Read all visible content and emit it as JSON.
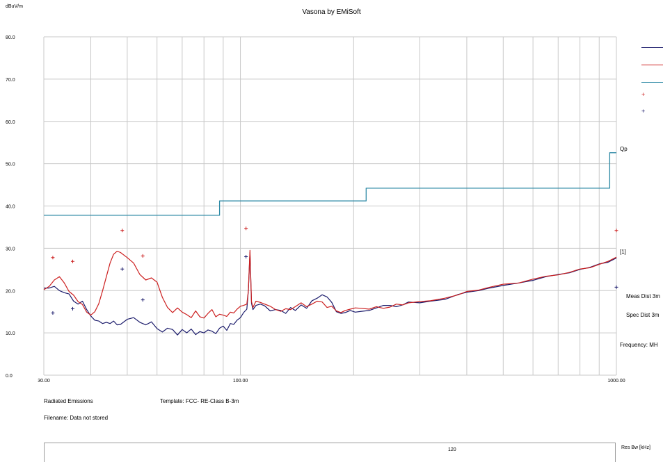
{
  "header": {
    "title": "Vasona by EMiSoft"
  },
  "footer": {
    "section": "Radiated Emissions",
    "template": "Template: FCC- RE-Class B-3m",
    "filename": "Filename: Data not stored",
    "res_bw_label": "Res Bw [kHz]",
    "res_bw_value": "120"
  },
  "side_info": {
    "meas_dist": "Meas Dist 3m",
    "spec_dist": "Spec Dist 3m",
    "frequency": "Frequency: MH",
    "limit_tag": "Qp",
    "trace_tag": "[1]"
  },
  "colors": {
    "trace_navy": "#1b1b6b",
    "trace_red": "#cc1f1f",
    "limit_teal": "#2e8aa6",
    "grid": "#c8c8c8"
  },
  "chart_data": {
    "type": "line",
    "title": "Vasona by EMiSoft",
    "ylabel": "dBuV/m",
    "xlabel": "",
    "xscale": "log",
    "xlim": [
      30,
      1000
    ],
    "ylim": [
      0,
      80
    ],
    "yticks": [
      "0.0",
      "10.0",
      "20.0",
      "30.0",
      "40.0",
      "50.0",
      "60.0",
      "70.0",
      "80.0"
    ],
    "xticks": [
      {
        "value": 30,
        "label": "30.00"
      },
      {
        "value": 100,
        "label": "100.00"
      },
      {
        "value": 1000,
        "label": "1000.00"
      }
    ],
    "grid": true,
    "legend_position": "right",
    "series": [
      {
        "color": "#2e8aa6",
        "style": "step",
        "points": [
          [
            30,
            37.8
          ],
          [
            88,
            37.8
          ],
          [
            88,
            41.2
          ],
          [
            216,
            41.2
          ],
          [
            216,
            44.2
          ],
          [
            960,
            44.2
          ],
          [
            960,
            52.6
          ],
          [
            1000,
            52.6
          ]
        ]
      },
      {
        "color": "#1b1b6b",
        "style": "line",
        "points": [
          [
            30,
            20.6
          ],
          [
            31,
            20.6
          ],
          [
            32,
            21.0
          ],
          [
            33,
            20.0
          ],
          [
            34,
            19.5
          ],
          [
            35,
            19.2
          ],
          [
            36,
            17.5
          ],
          [
            37,
            16.8
          ],
          [
            38,
            17.5
          ],
          [
            39,
            15.5
          ],
          [
            40,
            14.0
          ],
          [
            41,
            13.0
          ],
          [
            42,
            12.8
          ],
          [
            43,
            12.2
          ],
          [
            44,
            12.5
          ],
          [
            45,
            12.2
          ],
          [
            46,
            12.8
          ],
          [
            47,
            11.9
          ],
          [
            48,
            12.0
          ],
          [
            50,
            13.2
          ],
          [
            52,
            13.6
          ],
          [
            54,
            12.5
          ],
          [
            56,
            11.9
          ],
          [
            58,
            12.6
          ],
          [
            60,
            11.0
          ],
          [
            62,
            10.2
          ],
          [
            64,
            11.1
          ],
          [
            66,
            10.8
          ],
          [
            68,
            9.5
          ],
          [
            70,
            10.8
          ],
          [
            72,
            10.0
          ],
          [
            74,
            10.9
          ],
          [
            76,
            9.6
          ],
          [
            78,
            10.3
          ],
          [
            80,
            10.0
          ],
          [
            82,
            10.7
          ],
          [
            84,
            10.4
          ],
          [
            86,
            9.8
          ],
          [
            88,
            11.1
          ],
          [
            90,
            11.6
          ],
          [
            92,
            10.6
          ],
          [
            94,
            12.2
          ],
          [
            96,
            12.0
          ],
          [
            98,
            13.0
          ],
          [
            100,
            13.6
          ],
          [
            102,
            14.8
          ],
          [
            104,
            15.6
          ],
          [
            105,
            20.0
          ],
          [
            106,
            29.0
          ],
          [
            107,
            17.0
          ],
          [
            108,
            15.5
          ],
          [
            110,
            16.5
          ],
          [
            113,
            16.8
          ],
          [
            116,
            16.4
          ],
          [
            120,
            15.2
          ],
          [
            124,
            15.5
          ],
          [
            128,
            15.3
          ],
          [
            132,
            14.6
          ],
          [
            136,
            16.0
          ],
          [
            140,
            15.3
          ],
          [
            145,
            16.6
          ],
          [
            150,
            15.8
          ],
          [
            155,
            17.6
          ],
          [
            160,
            18.2
          ],
          [
            165,
            19.0
          ],
          [
            170,
            18.5
          ],
          [
            175,
            17.2
          ],
          [
            180,
            15.0
          ],
          [
            185,
            14.6
          ],
          [
            190,
            14.8
          ],
          [
            196,
            15.3
          ],
          [
            202,
            14.9
          ],
          [
            210,
            15.1
          ],
          [
            220,
            15.3
          ],
          [
            230,
            15.9
          ],
          [
            240,
            16.5
          ],
          [
            250,
            16.5
          ],
          [
            260,
            16.2
          ],
          [
            270,
            16.6
          ],
          [
            280,
            17.3
          ],
          [
            300,
            17.1
          ],
          [
            320,
            17.5
          ],
          [
            350,
            17.9
          ],
          [
            380,
            19.1
          ],
          [
            400,
            19.6
          ],
          [
            430,
            20.0
          ],
          [
            460,
            20.6
          ],
          [
            500,
            21.2
          ],
          [
            550,
            21.8
          ],
          [
            600,
            22.4
          ],
          [
            650,
            23.3
          ],
          [
            700,
            23.8
          ],
          [
            750,
            24.2
          ],
          [
            800,
            25.0
          ],
          [
            850,
            25.5
          ],
          [
            900,
            26.3
          ],
          [
            950,
            26.7
          ],
          [
            1000,
            27.7
          ]
        ]
      },
      {
        "color": "#cc1f1f",
        "style": "line",
        "points": [
          [
            30,
            20.2
          ],
          [
            31,
            21.0
          ],
          [
            32,
            22.5
          ],
          [
            33,
            23.3
          ],
          [
            34,
            21.8
          ],
          [
            35,
            19.8
          ],
          [
            36,
            18.9
          ],
          [
            37,
            17.4
          ],
          [
            38,
            16.7
          ],
          [
            39,
            14.9
          ],
          [
            40,
            14.2
          ],
          [
            41,
            15.0
          ],
          [
            42,
            16.9
          ],
          [
            43,
            20.0
          ],
          [
            44,
            23.3
          ],
          [
            45,
            26.5
          ],
          [
            46,
            28.6
          ],
          [
            47,
            29.3
          ],
          [
            48,
            29.0
          ],
          [
            50,
            27.8
          ],
          [
            52,
            26.5
          ],
          [
            54,
            23.8
          ],
          [
            56,
            22.5
          ],
          [
            58,
            23.0
          ],
          [
            60,
            22.0
          ],
          [
            62,
            18.4
          ],
          [
            64,
            16.0
          ],
          [
            66,
            14.8
          ],
          [
            68,
            15.9
          ],
          [
            70,
            14.9
          ],
          [
            72,
            14.3
          ],
          [
            74,
            13.6
          ],
          [
            76,
            15.2
          ],
          [
            78,
            13.8
          ],
          [
            80,
            13.5
          ],
          [
            82,
            14.6
          ],
          [
            84,
            15.5
          ],
          [
            86,
            13.8
          ],
          [
            88,
            14.4
          ],
          [
            90,
            14.2
          ],
          [
            92,
            13.9
          ],
          [
            94,
            14.9
          ],
          [
            96,
            14.7
          ],
          [
            98,
            15.6
          ],
          [
            100,
            16.3
          ],
          [
            102,
            16.5
          ],
          [
            104,
            16.8
          ],
          [
            105,
            20.0
          ],
          [
            106,
            29.5
          ],
          [
            107,
            17.4
          ],
          [
            108,
            16.0
          ],
          [
            110,
            17.5
          ],
          [
            113,
            17.2
          ],
          [
            116,
            16.8
          ],
          [
            120,
            16.3
          ],
          [
            124,
            15.5
          ],
          [
            128,
            15.1
          ],
          [
            132,
            15.7
          ],
          [
            136,
            15.5
          ],
          [
            140,
            16.2
          ],
          [
            145,
            17.1
          ],
          [
            150,
            16.2
          ],
          [
            155,
            16.8
          ],
          [
            160,
            17.5
          ],
          [
            165,
            17.3
          ],
          [
            170,
            16.0
          ],
          [
            175,
            16.3
          ],
          [
            180,
            15.2
          ],
          [
            185,
            14.8
          ],
          [
            190,
            15.3
          ],
          [
            196,
            15.6
          ],
          [
            202,
            15.9
          ],
          [
            210,
            15.8
          ],
          [
            220,
            15.6
          ],
          [
            230,
            16.2
          ],
          [
            240,
            15.8
          ],
          [
            250,
            16.1
          ],
          [
            260,
            16.8
          ],
          [
            270,
            16.6
          ],
          [
            280,
            17.1
          ],
          [
            300,
            17.4
          ],
          [
            320,
            17.6
          ],
          [
            350,
            18.2
          ],
          [
            380,
            19.0
          ],
          [
            400,
            19.8
          ],
          [
            430,
            20.1
          ],
          [
            460,
            20.8
          ],
          [
            500,
            21.5
          ],
          [
            550,
            21.8
          ],
          [
            600,
            22.7
          ],
          [
            650,
            23.4
          ],
          [
            700,
            23.7
          ],
          [
            750,
            24.3
          ],
          [
            800,
            25.1
          ],
          [
            850,
            25.4
          ],
          [
            900,
            26.2
          ],
          [
            950,
            26.9
          ],
          [
            1000,
            27.9
          ]
        ]
      },
      {
        "color": "#cc1f1f",
        "style": "markers",
        "points": [
          [
            31.7,
            27.8
          ],
          [
            35.8,
            26.9
          ],
          [
            48.5,
            34.2
          ],
          [
            55,
            28.2
          ],
          [
            103.5,
            34.7
          ],
          [
            1000,
            34.2
          ]
        ]
      },
      {
        "color": "#1b1b6b",
        "style": "markers",
        "points": [
          [
            31.7,
            14.7
          ],
          [
            35.8,
            15.7
          ],
          [
            48.5,
            25.1
          ],
          [
            55,
            17.8
          ],
          [
            103.5,
            28.0
          ],
          [
            1000,
            20.8
          ]
        ]
      }
    ]
  }
}
